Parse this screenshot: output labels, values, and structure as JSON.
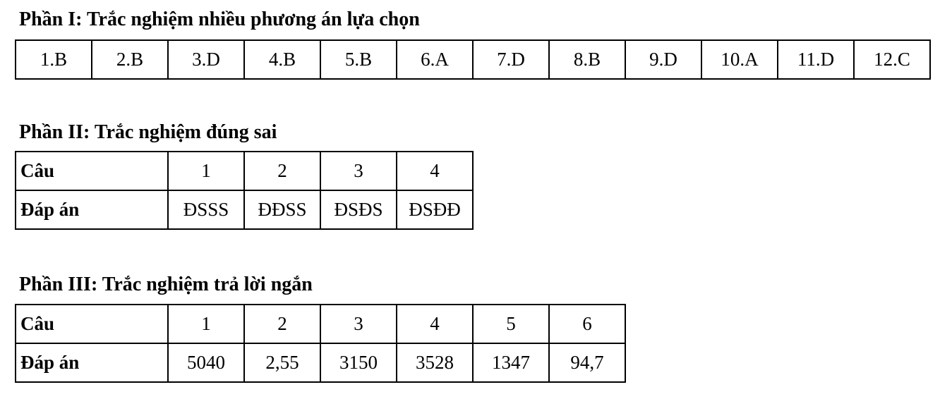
{
  "part1": {
    "title": "Phần I: Trắc nghiệm nhiều phương án lựa chọn",
    "answers": [
      "1.B",
      "2.B",
      "3.D",
      "4.B",
      "5.B",
      "6.A",
      "7.D",
      "8.B",
      "9.D",
      "10.A",
      "11.D",
      "12.C"
    ]
  },
  "part2": {
    "title": "Phần II: Trắc nghiệm đúng sai",
    "row_labels": [
      "Câu",
      "Đáp án"
    ],
    "questions": [
      "1",
      "2",
      "3",
      "4"
    ],
    "answers": [
      "ĐSSS",
      "ĐĐSS",
      "ĐSĐS",
      "ĐSĐĐ"
    ]
  },
  "part3": {
    "title": "Phần III: Trắc nghiệm trả lời ngắn",
    "row_labels": [
      "Câu",
      "Đáp án"
    ],
    "questions": [
      "1",
      "2",
      "3",
      "4",
      "5",
      "6"
    ],
    "answers": [
      "5040",
      "2,55",
      "3150",
      "3528",
      "1347",
      "94,7"
    ]
  }
}
